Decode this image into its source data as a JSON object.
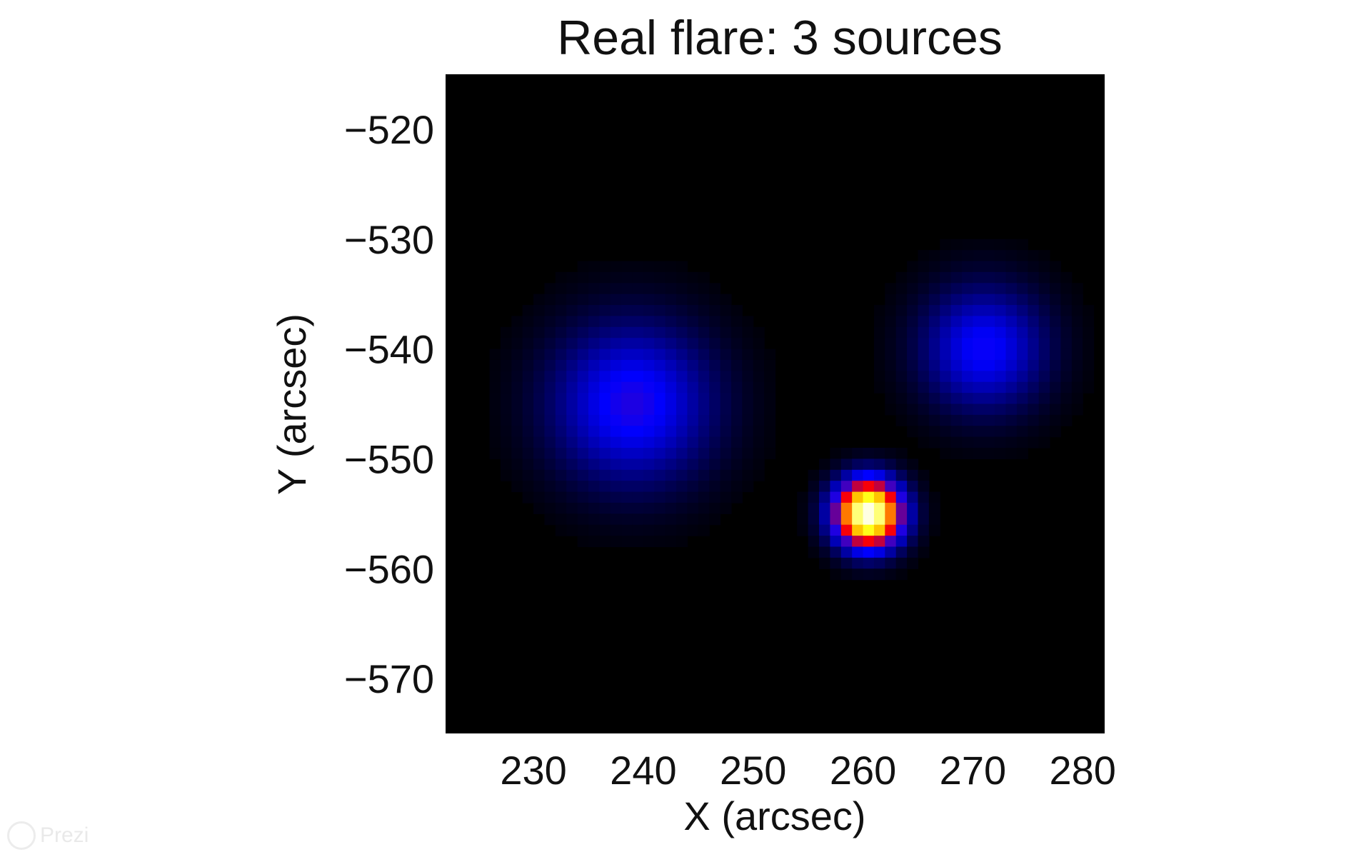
{
  "chart_data": {
    "type": "heatmap",
    "title": "Real flare: 3 sources",
    "xlabel": "X (arcsec)",
    "ylabel": "Y (arcsec)",
    "xlim": [
      222,
      282
    ],
    "ylim": [
      -575,
      -515
    ],
    "x_ticks": [
      230,
      240,
      250,
      260,
      270,
      280
    ],
    "y_ticks": [
      -520,
      -530,
      -540,
      -550,
      -560,
      -570
    ],
    "x_tick_labels": [
      "230",
      "240",
      "250",
      "260",
      "270",
      "280"
    ],
    "y_tick_labels": [
      "−520",
      "−530",
      "−540",
      "−550",
      "−560",
      "−570"
    ],
    "colormap": [
      "#000000",
      "#0000ff",
      "#ff0000",
      "#ffff00",
      "#ffffff"
    ],
    "grid": false,
    "sources": [
      {
        "x": 239,
        "y": -545,
        "peak": 0.28,
        "sigma": 5.2
      },
      {
        "x": 271,
        "y": -540,
        "peak": 0.26,
        "sigma": 4.0
      },
      {
        "x": 260.5,
        "y": -555,
        "peak": 1.0,
        "sigma": 2.1
      }
    ]
  },
  "watermark": {
    "text": "Prezi"
  }
}
